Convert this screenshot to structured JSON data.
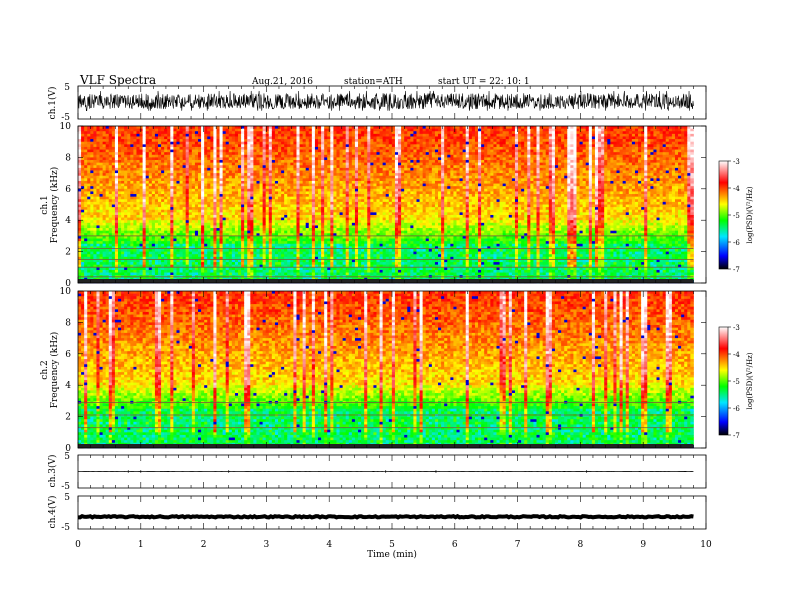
{
  "header": {
    "title": "VLF  Spectra",
    "date": "Aug.21, 2016",
    "station": "station=ATH",
    "start": "start  UT =   22: 10: 1"
  },
  "chart_data": [
    {
      "type": "line",
      "name": "ch1-waveform",
      "ylabel": "ch.1(V)",
      "ylim": [
        -5,
        5
      ],
      "yticks": [
        "5",
        "-5"
      ],
      "xlim": [
        0,
        10
      ],
      "signal": {
        "baseline": 0,
        "amplitude_range": [
          -2.5,
          3.5
        ],
        "duration_min": 9.8
      }
    },
    {
      "type": "heatmap",
      "name": "ch1-spectrogram",
      "ylabel_channel": "ch.1",
      "ylabel": "Frequency  (kHz)",
      "ylim": [
        0,
        10
      ],
      "yticks": [
        "0",
        "2",
        "4",
        "6",
        "8",
        "10"
      ],
      "xlim": [
        0,
        10
      ],
      "duration_min": 9.8,
      "color_scale": {
        "label": "log(PSD)(V²/Hz)",
        "range": [
          -7,
          -3
        ],
        "ticks": [
          "-3",
          "-4",
          "-5",
          "-6",
          "-7"
        ],
        "colors": [
          "#000000",
          "#0000ff",
          "#00e6ff",
          "#00ff00",
          "#ffff00",
          "#ff0000",
          "#ffffff"
        ]
      },
      "band_lines_khz": [
        0.4,
        1.0,
        1.5,
        2.2,
        3.0
      ]
    },
    {
      "type": "heatmap",
      "name": "ch2-spectrogram",
      "ylabel_channel": "ch.2",
      "ylabel": "Frequency  (kHz)",
      "ylim": [
        0,
        10
      ],
      "yticks": [
        "0",
        "2",
        "4",
        "6",
        "8",
        "10"
      ],
      "xlim": [
        0,
        10
      ],
      "duration_min": 9.8,
      "color_scale": {
        "label": "log(PSD)(V²/Hz)",
        "range": [
          -7,
          -3
        ],
        "ticks": [
          "-3",
          "-4",
          "-5",
          "-6",
          "-7"
        ],
        "colors": [
          "#000000",
          "#0000ff",
          "#00e6ff",
          "#00ff00",
          "#ffff00",
          "#ff0000",
          "#ffffff"
        ]
      },
      "band_lines_khz": [
        1.3,
        2.1,
        2.9
      ]
    },
    {
      "type": "line",
      "name": "ch3-waveform",
      "ylabel": "ch.3(V)",
      "ylim": [
        -5,
        5
      ],
      "yticks": [
        "5",
        "-5"
      ],
      "xlim": [
        0,
        10
      ],
      "signal": {
        "baseline": 0,
        "amplitude_range": [
          -0.05,
          0.05
        ],
        "duration_min": 9.8
      }
    },
    {
      "type": "line",
      "name": "ch4-waveform",
      "ylabel": "ch.4(V)",
      "ylim": [
        -5,
        5
      ],
      "yticks": [
        "5",
        "-5"
      ],
      "xlim": [
        0,
        10
      ],
      "signal": {
        "baseline": -1.3,
        "amplitude_range": [
          -0.2,
          0.2
        ],
        "duration_min": 9.8
      }
    }
  ],
  "xaxis": {
    "label": "Time  (min)",
    "ticks": [
      "0",
      "1",
      "2",
      "3",
      "4",
      "5",
      "6",
      "7",
      "8",
      "9",
      "10"
    ]
  }
}
